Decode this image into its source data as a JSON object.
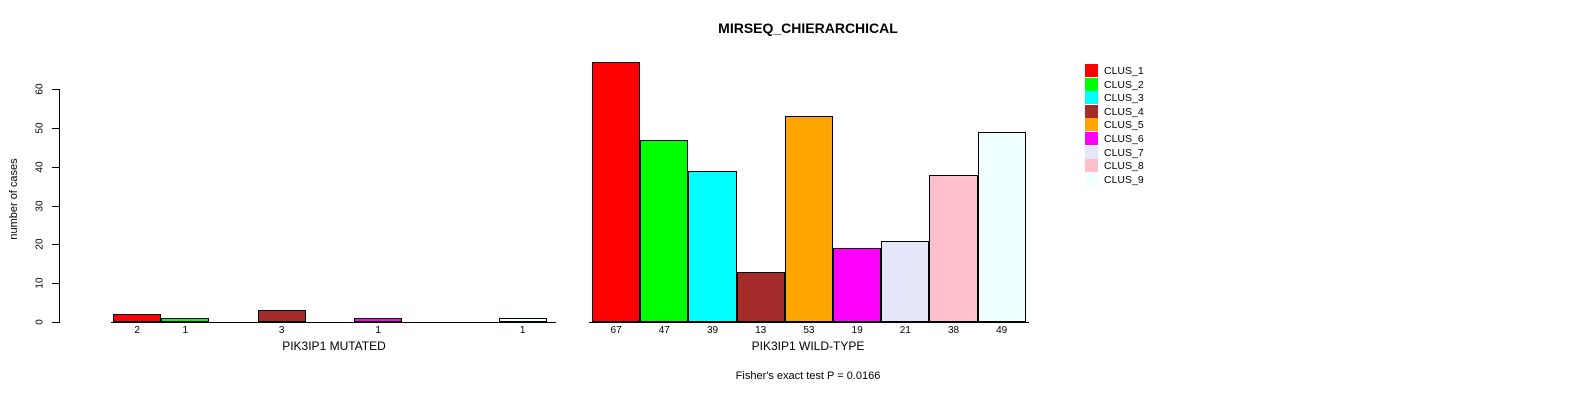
{
  "chart_data": {
    "type": "bar",
    "title": "MIRSEQ_CHIERARCHICAL",
    "ylabel": "number of cases",
    "ylim": [
      0,
      60
    ],
    "yticks": [
      0,
      10,
      20,
      30,
      40,
      50,
      60
    ],
    "grid": false,
    "legend_position": "right",
    "legend": [
      {
        "label": "CLUS_1",
        "color": "#FF0000"
      },
      {
        "label": "CLUS_2",
        "color": "#00FF00"
      },
      {
        "label": "CLUS_3",
        "color": "#00FFFF"
      },
      {
        "label": "CLUS_4",
        "color": "#A52A2A"
      },
      {
        "label": "CLUS_5",
        "color": "#FFA500"
      },
      {
        "label": "CLUS_6",
        "color": "#FF00FF"
      },
      {
        "label": "CLUS_7",
        "color": "#E6E6FA"
      },
      {
        "label": "CLUS_8",
        "color": "#FFC0CB"
      },
      {
        "label": "CLUS_9",
        "color": "#F0FFFF"
      }
    ],
    "groups": [
      {
        "label": "PIK3IP1 MUTATED",
        "values": [
          2,
          1,
          0,
          3,
          0,
          1,
          0,
          0,
          1
        ]
      },
      {
        "label": "PIK3IP1 WILD-TYPE",
        "values": [
          67,
          47,
          39,
          13,
          53,
          19,
          21,
          38,
          49
        ]
      }
    ],
    "footnote": "Fisher's exact test P = 0.0166"
  }
}
